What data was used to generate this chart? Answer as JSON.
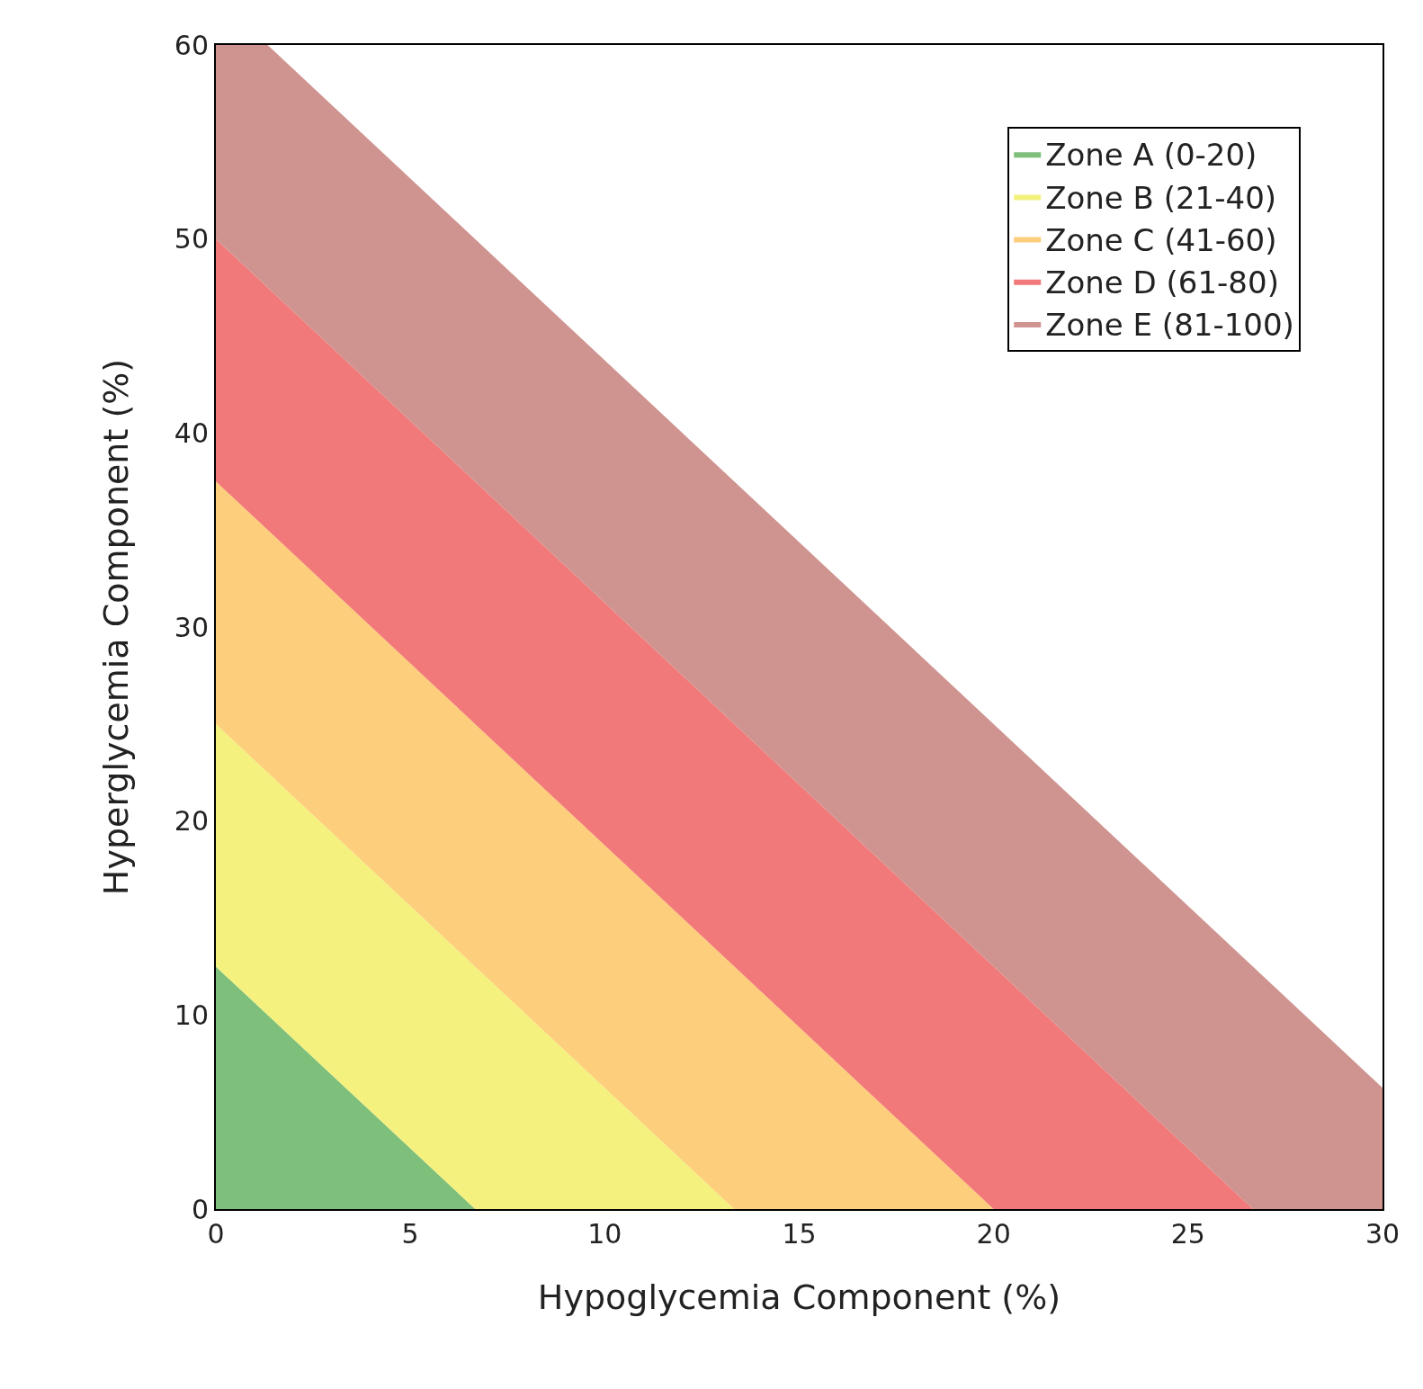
{
  "chart_data": {
    "type": "area",
    "xlabel": "Hypoglycemia Component (%)",
    "ylabel": "Hyperglycemia Component (%)",
    "xlim": [
      0,
      30
    ],
    "ylim": [
      0,
      60
    ],
    "xticks": [
      0,
      5,
      10,
      15,
      20,
      25,
      30
    ],
    "yticks": [
      0,
      10,
      20,
      30,
      40,
      50,
      60
    ],
    "legend": "top right",
    "marker": "none",
    "series": [
      {
        "name": "Zone A (0-20)",
        "color": "#7dbf7b",
        "x": [
          0,
          6.67
        ],
        "values": [
          12.5,
          0
        ]
      },
      {
        "name": "Zone B (21-40)",
        "color": "#f4f17e",
        "x": [
          0,
          13.33
        ],
        "values": [
          25,
          0
        ]
      },
      {
        "name": "Zone C (41-60)",
        "color": "#fdce7c",
        "x": [
          0,
          20
        ],
        "values": [
          37.5,
          0
        ]
      },
      {
        "name": "Zone D (61-80)",
        "color": "#f27979",
        "x": [
          0,
          26.67
        ],
        "values": [
          50,
          0
        ]
      },
      {
        "name": "Zone E (81-100)",
        "color": "#cf9490",
        "x": [
          0,
          1.33,
          30,
          30
        ],
        "values": [
          60,
          60,
          6.25,
          0
        ]
      }
    ]
  }
}
